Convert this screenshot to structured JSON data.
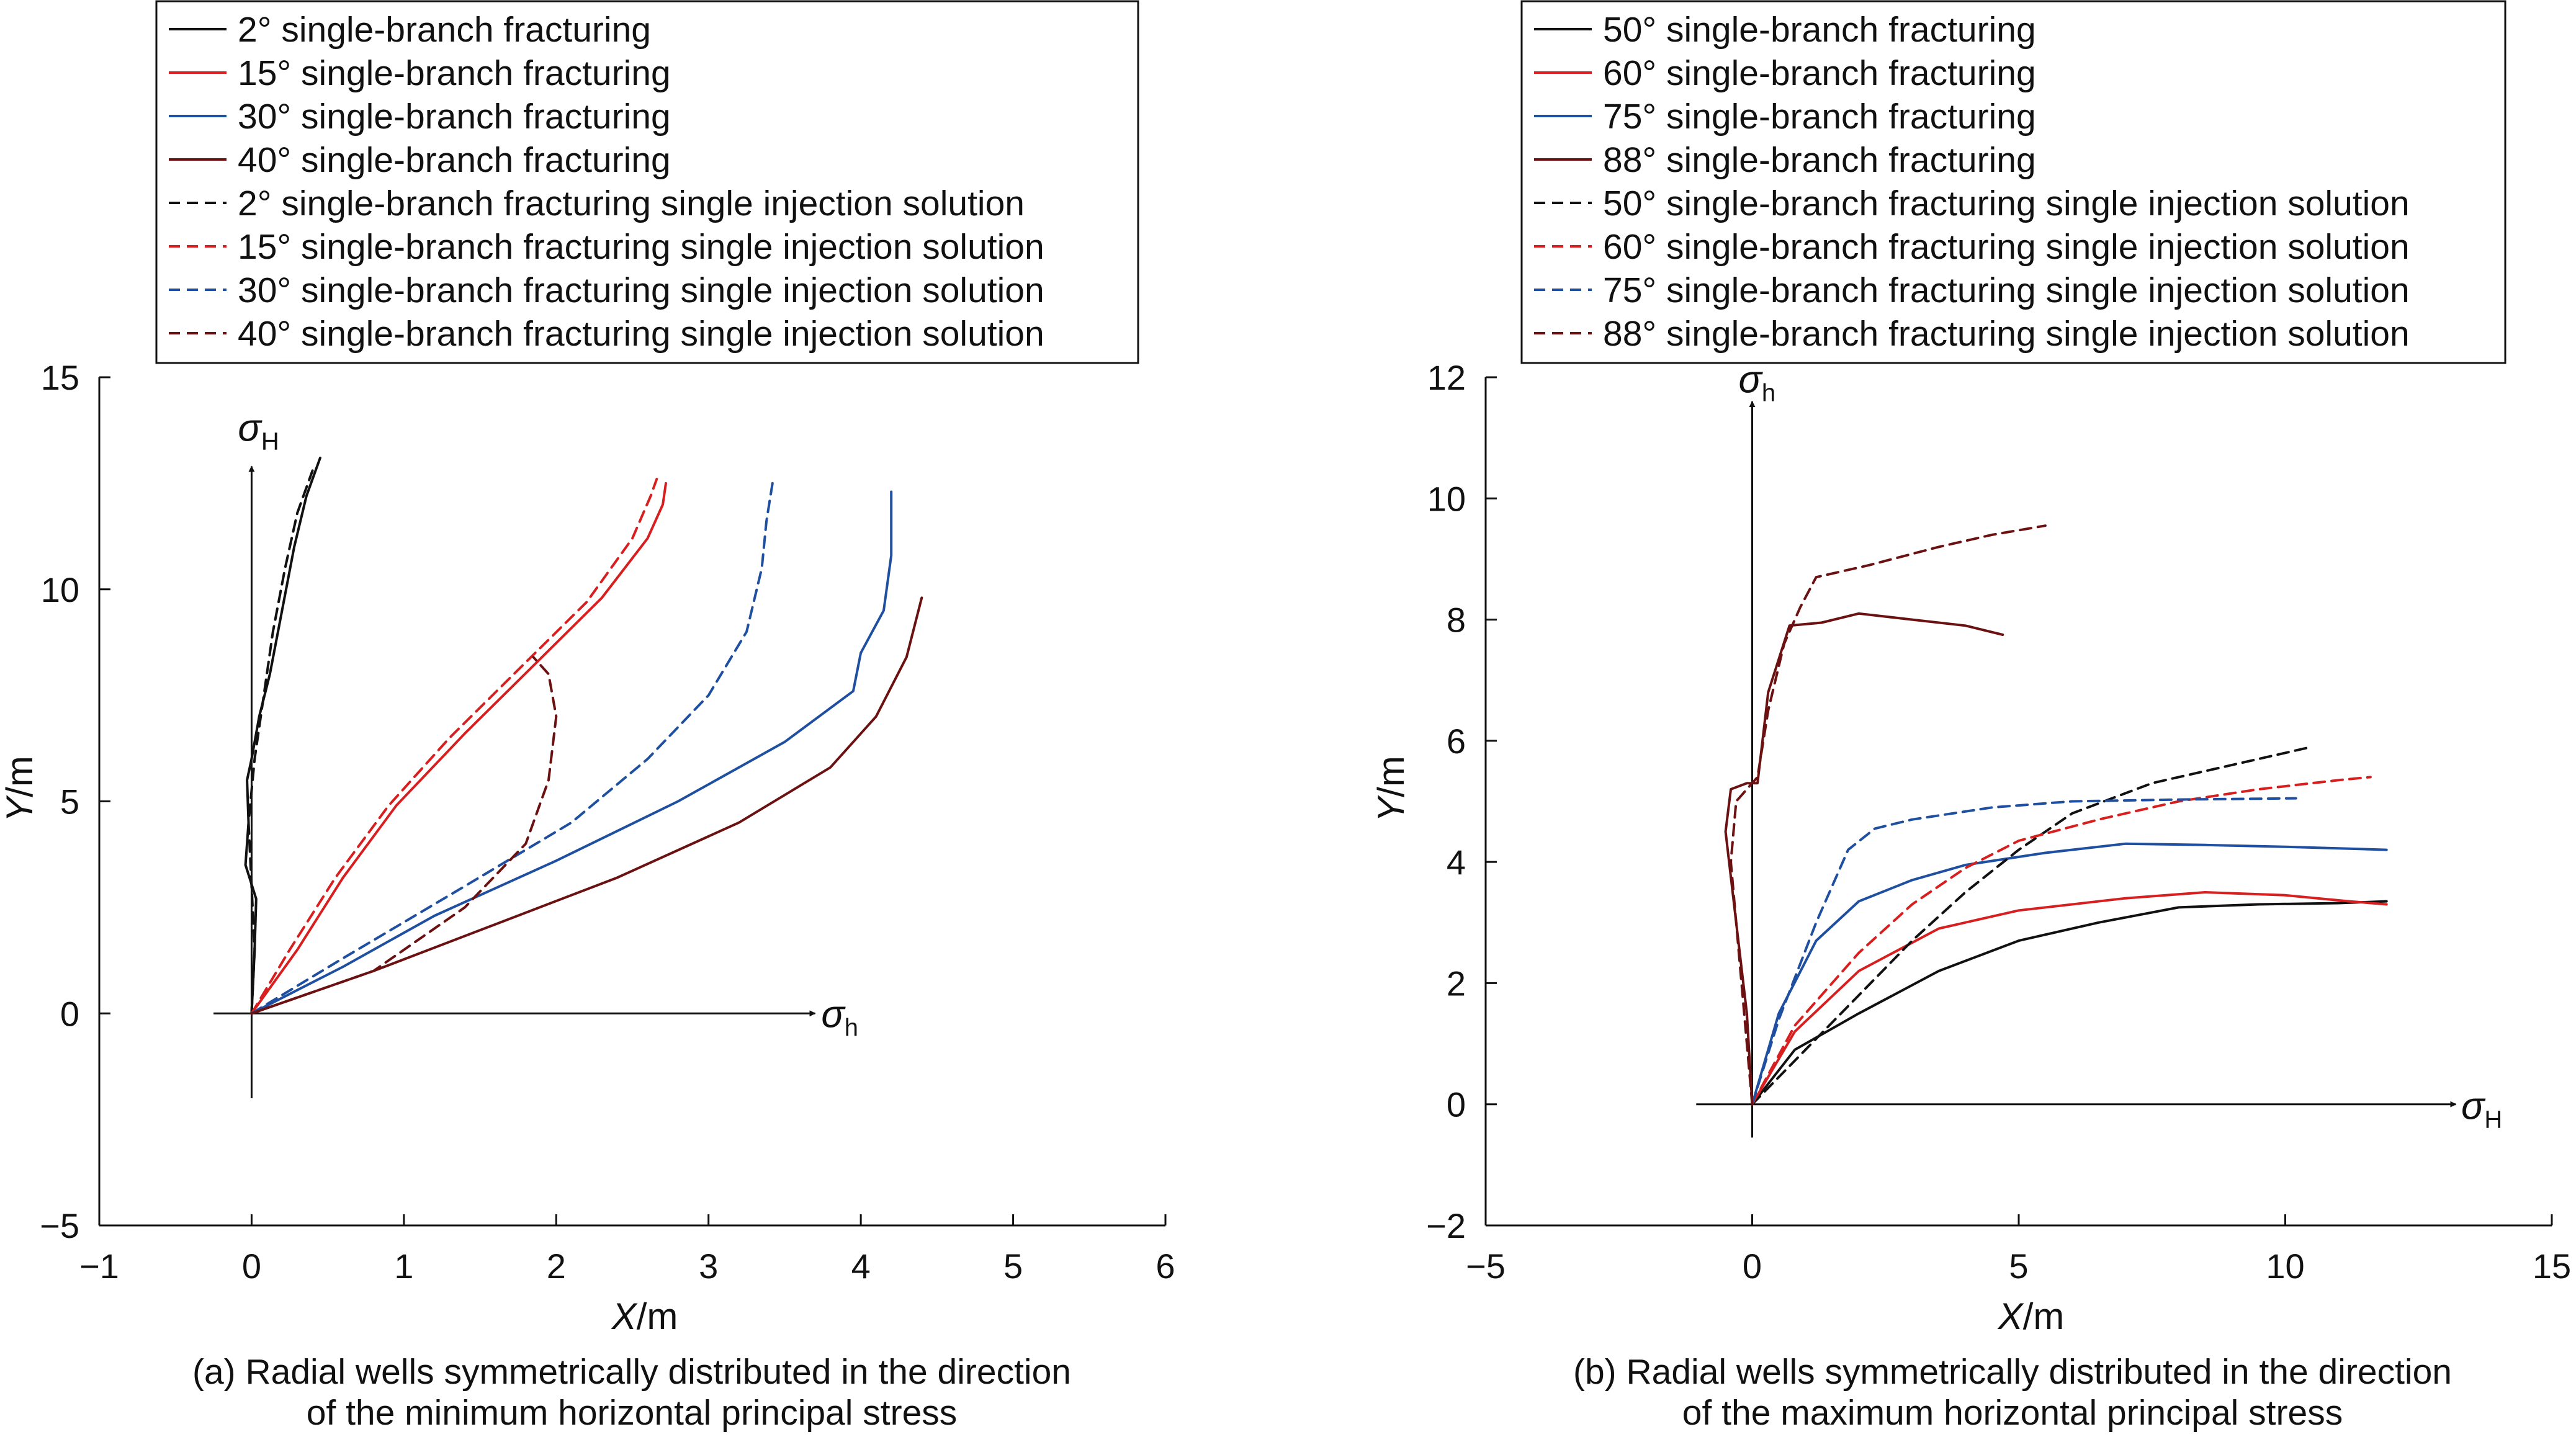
{
  "chart_data": [
    {
      "type": "line",
      "xlabel": "X/m",
      "ylabel": "Y/m",
      "xlim": [
        -1,
        6
      ],
      "ylim": [
        -5,
        15
      ],
      "xticks": [
        "−1",
        "0",
        "1",
        "2",
        "3",
        "4",
        "5",
        "6"
      ],
      "yticks": [
        "−5",
        "0",
        "5",
        "10",
        "15"
      ],
      "caption": [
        "(a) Radial wells symmetrically distributed in the direction",
        "of the minimum horizontal principal stress"
      ],
      "direction_labels": {
        "vertical": "σ",
        "vertical_sub": "H",
        "horizontal": "σ",
        "horizontal_sub": "h"
      },
      "legend_position": "top-left",
      "series": [
        {
          "name": "2° single-branch fracturing",
          "color": "#111111",
          "dash": "solid",
          "points": [
            [
              0,
              0
            ],
            [
              0.02,
              1.5
            ],
            [
              0.03,
              2.7
            ],
            [
              -0.04,
              3.5
            ],
            [
              -0.02,
              4.5
            ],
            [
              -0.03,
              5.5
            ],
            [
              0.0,
              6.0
            ],
            [
              0.05,
              7.0
            ],
            [
              0.12,
              8.0
            ],
            [
              0.2,
              9.5
            ],
            [
              0.28,
              11
            ],
            [
              0.36,
              12.2
            ],
            [
              0.45,
              13.1
            ]
          ]
        },
        {
          "name": "15° single-branch fracturing",
          "color": "#d81f1f",
          "dash": "solid",
          "points": [
            [
              0,
              0
            ],
            [
              0.3,
              1.5
            ],
            [
              0.6,
              3.2
            ],
            [
              0.95,
              4.9
            ],
            [
              1.4,
              6.6
            ],
            [
              1.85,
              8.2
            ],
            [
              2.3,
              9.8
            ],
            [
              2.6,
              11.2
            ],
            [
              2.7,
              12.0
            ],
            [
              2.72,
              12.5
            ]
          ]
        },
        {
          "name": "30° single-branch fracturing",
          "color": "#1f4fa0",
          "dash": "solid",
          "points": [
            [
              0,
              0
            ],
            [
              0.6,
              1.1
            ],
            [
              1.2,
              2.3
            ],
            [
              2.0,
              3.6
            ],
            [
              2.8,
              5.0
            ],
            [
              3.5,
              6.4
            ],
            [
              3.95,
              7.6
            ],
            [
              4.0,
              8.5
            ],
            [
              4.15,
              9.5
            ],
            [
              4.2,
              10.8
            ],
            [
              4.2,
              12.3
            ]
          ]
        },
        {
          "name": "40° single-branch fracturing",
          "color": "#6b1111",
          "dash": "solid",
          "points": [
            [
              0,
              0
            ],
            [
              0.8,
              1.0
            ],
            [
              1.6,
              2.1
            ],
            [
              2.4,
              3.2
            ],
            [
              3.2,
              4.5
            ],
            [
              3.8,
              5.8
            ],
            [
              4.1,
              7.0
            ],
            [
              4.3,
              8.4
            ],
            [
              4.4,
              9.8
            ]
          ]
        },
        {
          "name": "2° single-branch fracturing single injection solution",
          "color": "#111111",
          "dash": "dashed",
          "points": [
            [
              0,
              0
            ],
            [
              0.02,
              1.5
            ],
            [
              0.0,
              3.0
            ],
            [
              -0.02,
              4.5
            ],
            [
              0.02,
              6.0
            ],
            [
              0.08,
              7.5
            ],
            [
              0.14,
              9.0
            ],
            [
              0.22,
              10.5
            ],
            [
              0.3,
              11.8
            ],
            [
              0.4,
              12.8
            ]
          ]
        },
        {
          "name": "15° single-branch fracturing single injection solution",
          "color": "#d81f1f",
          "dash": "dashed",
          "points": [
            [
              0,
              0
            ],
            [
              0.25,
              1.5
            ],
            [
              0.55,
              3.2
            ],
            [
              0.9,
              4.9
            ],
            [
              1.3,
              6.5
            ],
            [
              1.75,
              8.1
            ],
            [
              2.2,
              9.7
            ],
            [
              2.5,
              11.2
            ],
            [
              2.62,
              12.2
            ],
            [
              2.66,
              12.6
            ]
          ]
        },
        {
          "name": "30° single-branch fracturing single injection solution",
          "color": "#1f4fa0",
          "dash": "dashed",
          "points": [
            [
              0,
              0
            ],
            [
              0.6,
              1.3
            ],
            [
              1.4,
              3.0
            ],
            [
              2.1,
              4.5
            ],
            [
              2.6,
              6.0
            ],
            [
              3.0,
              7.5
            ],
            [
              3.25,
              9.0
            ],
            [
              3.35,
              10.5
            ],
            [
              3.38,
              11.6
            ],
            [
              3.42,
              12.5
            ]
          ]
        },
        {
          "name": "40° single-branch fracturing single injection solution",
          "color": "#6b1111",
          "dash": "dashed",
          "points": [
            [
              0,
              0
            ],
            [
              0.8,
              1.0
            ],
            [
              1.4,
              2.5
            ],
            [
              1.8,
              4.0
            ],
            [
              1.95,
              5.5
            ],
            [
              2.0,
              7.0
            ],
            [
              1.95,
              8.0
            ],
            [
              1.85,
              8.4
            ]
          ]
        }
      ]
    },
    {
      "type": "line",
      "xlabel": "X/m",
      "ylabel": "Y/m",
      "xlim": [
        -5,
        15
      ],
      "ylim": [
        -2,
        12
      ],
      "xticks": [
        "−5",
        "0",
        "5",
        "10",
        "15"
      ],
      "yticks": [
        "−2",
        "0",
        "2",
        "4",
        "6",
        "8",
        "10",
        "12"
      ],
      "caption": [
        "(b) Radial wells symmetrically distributed in the direction",
        "of the maximum horizontal principal stress"
      ],
      "direction_labels": {
        "vertical": "σ",
        "vertical_sub": "h",
        "horizontal": "σ",
        "horizontal_sub": "H"
      },
      "legend_position": "top-left",
      "series": [
        {
          "name": "50° single-branch fracturing",
          "color": "#111111",
          "dash": "solid",
          "points": [
            [
              0,
              0
            ],
            [
              0.8,
              0.9
            ],
            [
              2,
              1.5
            ],
            [
              3.5,
              2.2
            ],
            [
              5,
              2.7
            ],
            [
              6.5,
              3.0
            ],
            [
              8,
              3.25
            ],
            [
              9.5,
              3.3
            ],
            [
              11,
              3.32
            ],
            [
              11.9,
              3.35
            ]
          ]
        },
        {
          "name": "60° single-branch fracturing",
          "color": "#d81f1f",
          "dash": "solid",
          "points": [
            [
              0,
              0
            ],
            [
              0.8,
              1.2
            ],
            [
              2,
              2.2
            ],
            [
              3.5,
              2.9
            ],
            [
              5,
              3.2
            ],
            [
              7,
              3.4
            ],
            [
              8.5,
              3.5
            ],
            [
              10,
              3.45
            ],
            [
              11.2,
              3.35
            ],
            [
              11.9,
              3.3
            ]
          ]
        },
        {
          "name": "75° single-branch fracturing",
          "color": "#1f4fa0",
          "dash": "solid",
          "points": [
            [
              0,
              0
            ],
            [
              0.5,
              1.5
            ],
            [
              1.2,
              2.7
            ],
            [
              2,
              3.35
            ],
            [
              3,
              3.7
            ],
            [
              4,
              3.95
            ],
            [
              5.5,
              4.15
            ],
            [
              7,
              4.3
            ],
            [
              8.5,
              4.28
            ],
            [
              10,
              4.25
            ],
            [
              11.9,
              4.2
            ]
          ]
        },
        {
          "name": "88° single-branch fracturing",
          "color": "#6b1111",
          "dash": "solid",
          "points": [
            [
              0,
              0
            ],
            [
              -0.1,
              1.5
            ],
            [
              -0.3,
              3.0
            ],
            [
              -0.5,
              4.5
            ],
            [
              -0.4,
              5.2
            ],
            [
              -0.1,
              5.3
            ],
            [
              0.1,
              5.3
            ],
            [
              0.3,
              6.8
            ],
            [
              0.7,
              7.9
            ],
            [
              1.3,
              7.95
            ],
            [
              2,
              8.1
            ],
            [
              3,
              8.0
            ],
            [
              4,
              7.9
            ],
            [
              4.7,
              7.75
            ]
          ]
        },
        {
          "name": "50° single-branch fracturing single injection solution",
          "color": "#111111",
          "dash": "dashed",
          "points": [
            [
              0,
              0
            ],
            [
              1,
              0.9
            ],
            [
              2,
              1.8
            ],
            [
              3,
              2.7
            ],
            [
              4,
              3.5
            ],
            [
              5,
              4.2
            ],
            [
              6,
              4.8
            ],
            [
              7.5,
              5.3
            ],
            [
              9,
              5.6
            ],
            [
              10.5,
              5.9
            ]
          ]
        },
        {
          "name": "60° single-branch fracturing single injection solution",
          "color": "#d81f1f",
          "dash": "dashed",
          "points": [
            [
              0,
              0
            ],
            [
              0.8,
              1.3
            ],
            [
              2,
              2.5
            ],
            [
              3,
              3.3
            ],
            [
              4,
              3.9
            ],
            [
              5,
              4.35
            ],
            [
              6.5,
              4.7
            ],
            [
              8,
              5.0
            ],
            [
              9.5,
              5.2
            ],
            [
              11,
              5.35
            ],
            [
              11.6,
              5.4
            ]
          ]
        },
        {
          "name": "75° single-branch fracturing single injection solution",
          "color": "#1f4fa0",
          "dash": "dashed",
          "points": [
            [
              0,
              0
            ],
            [
              0.5,
              1.4
            ],
            [
              1.2,
              3.0
            ],
            [
              1.8,
              4.2
            ],
            [
              2.3,
              4.55
            ],
            [
              3,
              4.7
            ],
            [
              4.5,
              4.9
            ],
            [
              6,
              5.0
            ],
            [
              8,
              5.03
            ],
            [
              10.2,
              5.05
            ]
          ]
        },
        {
          "name": "88° single-branch fracturing single injection solution",
          "color": "#6b1111",
          "dash": "dashed",
          "points": [
            [
              0,
              0
            ],
            [
              -0.2,
              2.0
            ],
            [
              -0.4,
              4.0
            ],
            [
              -0.3,
              5.0
            ],
            [
              0.1,
              5.4
            ],
            [
              0.3,
              6.5
            ],
            [
              0.6,
              7.6
            ],
            [
              0.9,
              8.2
            ],
            [
              1.2,
              8.7
            ],
            [
              2.2,
              8.9
            ],
            [
              3.5,
              9.2
            ],
            [
              4.5,
              9.4
            ],
            [
              5.5,
              9.55
            ]
          ]
        }
      ]
    }
  ]
}
